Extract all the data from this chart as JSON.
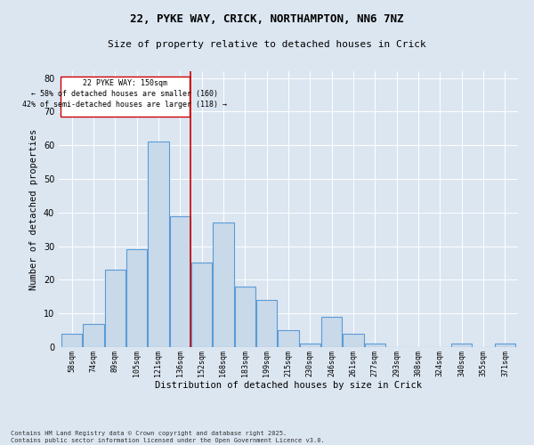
{
  "title_line1": "22, PYKE WAY, CRICK, NORTHAMPTON, NN6 7NZ",
  "title_line2": "Size of property relative to detached houses in Crick",
  "xlabel": "Distribution of detached houses by size in Crick",
  "ylabel": "Number of detached properties",
  "footer": "Contains HM Land Registry data © Crown copyright and database right 2025.\nContains public sector information licensed under the Open Government Licence v3.0.",
  "bin_labels": [
    "58sqm",
    "74sqm",
    "89sqm",
    "105sqm",
    "121sqm",
    "136sqm",
    "152sqm",
    "168sqm",
    "183sqm",
    "199sqm",
    "215sqm",
    "230sqm",
    "246sqm",
    "261sqm",
    "277sqm",
    "293sqm",
    "308sqm",
    "324sqm",
    "340sqm",
    "355sqm",
    "371sqm"
  ],
  "bar_heights": [
    4,
    7,
    23,
    29,
    61,
    39,
    25,
    37,
    18,
    14,
    5,
    1,
    9,
    4,
    1,
    0,
    0,
    0,
    1,
    0,
    1
  ],
  "bar_color": "#c8d9ea",
  "bar_edge_color": "#5b9bd5",
  "property_label": "22 PYKE WAY: 150sqm",
  "annotation_line2": "← 58% of detached houses are smaller (160)",
  "annotation_line3": "42% of semi-detached houses are larger (118) →",
  "annotation_box_color": "#ffffff",
  "annotation_box_edge": "#cc0000",
  "vline_color": "#cc0000",
  "ylim": [
    0,
    82
  ],
  "background_color": "#dce6f1",
  "title_fontsize": 9,
  "subtitle_fontsize": 8,
  "ylabel_fontsize": 7.5,
  "xlabel_fontsize": 7.5,
  "tick_fontsize": 6,
  "annotation_fontsize": 6,
  "footer_fontsize": 5
}
